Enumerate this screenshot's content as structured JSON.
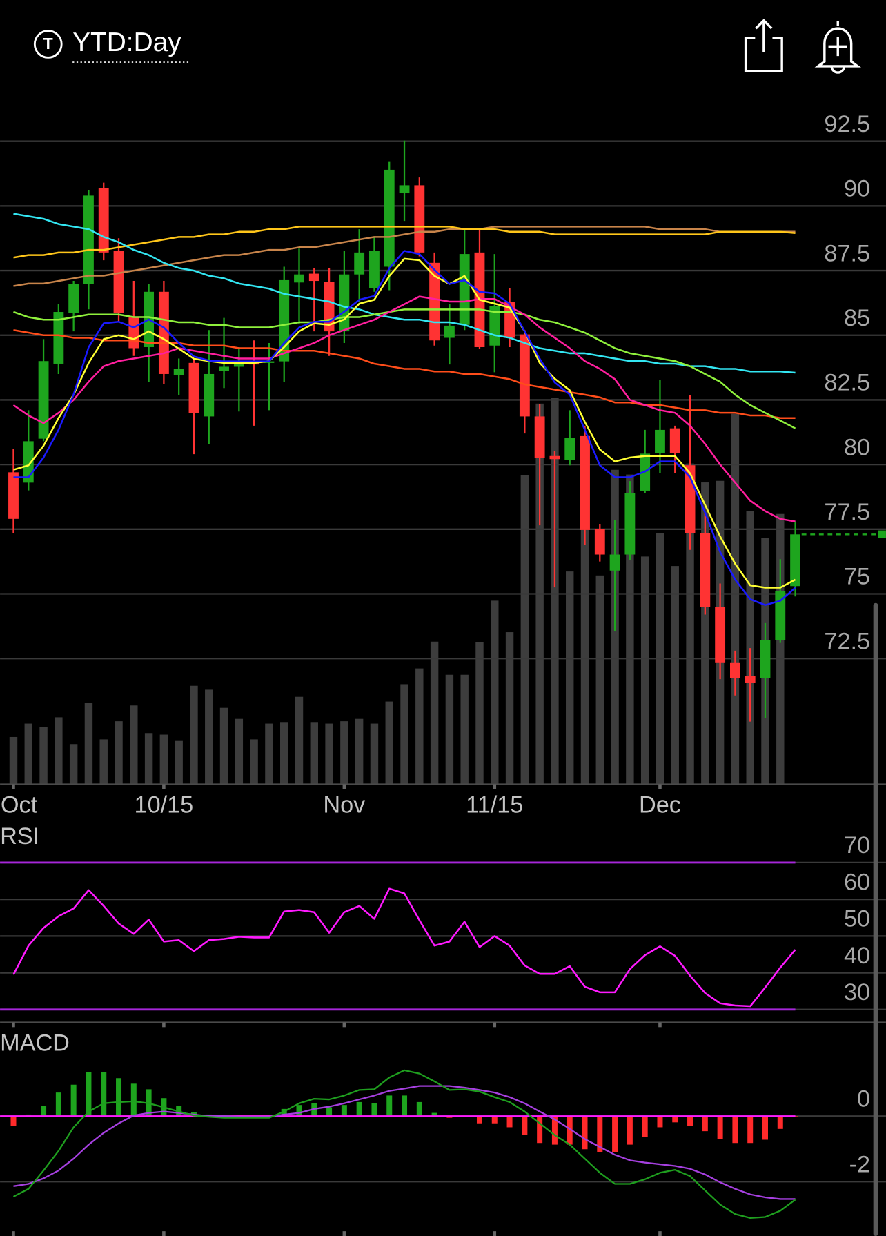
{
  "header": {
    "icon": "T",
    "title": "YTD:Day"
  },
  "chart_data": [
    {
      "type": "candlestick",
      "categories": [
        "Oct",
        null,
        null,
        null,
        null,
        null,
        null,
        null,
        null,
        null,
        "10/15",
        null,
        null,
        null,
        null,
        null,
        null,
        null,
        null,
        null,
        null,
        null,
        "Nov",
        null,
        null,
        null,
        null,
        null,
        null,
        null,
        null,
        null,
        "11/15",
        null,
        null,
        null,
        null,
        null,
        null,
        null,
        null,
        null,
        null,
        "Dec",
        null,
        null,
        null,
        null,
        null,
        null,
        null,
        null,
        null
      ],
      "open": [
        79.7,
        79.3,
        81.0,
        83.9,
        85.85,
        86.98,
        90.7,
        88.26,
        85.7,
        84.54,
        86.68,
        83.47,
        83.93,
        81.86,
        83.63,
        83.78,
        83.99,
        83.93,
        83.99,
        87.04,
        87.38,
        87.07,
        85.15,
        87.35,
        86.83,
        87.65,
        90.49,
        90.8,
        87.8,
        84.9,
        85.4,
        88.2,
        84.6,
        86.28,
        85.03,
        81.86,
        80.33,
        80.18,
        81.1,
        77.5,
        75.9,
        76.52,
        78.99,
        80.45,
        81.4,
        79.97,
        77.35,
        74.5,
        72.35,
        71.83,
        71.74,
        73.2,
        75.3
      ],
      "high": [
        80.6,
        82.1,
        84.85,
        86.2,
        87.1,
        90.6,
        90.9,
        88.75,
        87.1,
        86.98,
        87.1,
        84.1,
        84.1,
        85.2,
        85.67,
        84.54,
        84.8,
        84.7,
        87.65,
        88.35,
        87.59,
        87.59,
        88.26,
        89.1,
        88.8,
        91.7,
        92.53,
        91.1,
        88.2,
        86.2,
        89.1,
        89.1,
        88.14,
        86.83,
        85.2,
        82.35,
        80.52,
        82.1,
        81.5,
        77.7,
        77.84,
        79.36,
        81.34,
        83.26,
        81.5,
        82.7,
        78.1,
        75.4,
        72.8,
        72.9,
        73.87,
        76.34,
        77.8
      ],
      "low": [
        77.35,
        79.0,
        80.9,
        83.5,
        85.15,
        86.0,
        87.9,
        85.5,
        84.2,
        83.2,
        83.1,
        82.7,
        80.4,
        80.8,
        82.96,
        82.05,
        81.5,
        82.1,
        83.2,
        85.45,
        85.15,
        84.2,
        84.7,
        86.3,
        86.68,
        86.74,
        89.42,
        88.05,
        84.6,
        83.87,
        85.2,
        84.48,
        83.57,
        84.54,
        81.2,
        77.65,
        75.25,
        79.97,
        76.9,
        76.25,
        73.57,
        76.3,
        78.9,
        79.66,
        79.66,
        76.7,
        74.2,
        71.7,
        71.07,
        70.06,
        70.21,
        73.1,
        74.9
      ],
      "close": [
        77.9,
        80.9,
        84.0,
        85.9,
        86.98,
        90.4,
        88.2,
        85.85,
        84.5,
        86.68,
        83.5,
        83.69,
        81.98,
        83.5,
        83.78,
        83.99,
        83.87,
        83.99,
        87.13,
        87.35,
        87.1,
        85.15,
        87.35,
        88.2,
        88.26,
        91.4,
        90.8,
        88.2,
        84.8,
        85.37,
        88.14,
        84.54,
        86.13,
        84.9,
        81.86,
        80.27,
        80.21,
        81.04,
        77.47,
        76.52,
        76.52,
        78.9,
        80.42,
        81.34,
        80.45,
        77.35,
        74.5,
        72.35,
        71.74,
        71.55,
        73.2,
        75.1,
        77.3
      ],
      "up_color": "#1ea51e",
      "down_color": "#ff3333",
      "volume": {
        "color": "#3d3d3d",
        "values": [
          60,
          77,
          73,
          85,
          51,
          103,
          57,
          80,
          100,
          65,
          63,
          55,
          125,
          120,
          97,
          83,
          57,
          77,
          79,
          111,
          79,
          77,
          80,
          83,
          77,
          105,
          127,
          147,
          181,
          139,
          139,
          180,
          233,
          193,
          392,
          483,
          490,
          270,
          345,
          265,
          399,
          393,
          289,
          319,
          277,
          407,
          383,
          385,
          470,
          347,
          313,
          343,
          null
        ]
      },
      "series": [
        {
          "color": "#c8844a",
          "values": [
            86.9,
            87.0,
            87.0,
            87.1,
            87.2,
            87.3,
            87.3,
            87.4,
            87.5,
            87.6,
            87.7,
            87.8,
            87.9,
            88.0,
            88.1,
            88.1,
            88.2,
            88.3,
            88.3,
            88.4,
            88.4,
            88.5,
            88.6,
            88.7,
            88.8,
            88.8,
            88.9,
            89.0,
            89.0,
            89.1,
            89.1,
            89.1,
            89.2,
            89.2,
            89.2,
            89.2,
            89.2,
            89.2,
            89.2,
            89.2,
            89.2,
            89.2,
            89.2,
            89.1,
            89.1,
            89.1,
            89.1,
            89.0,
            89.0,
            89.0,
            89.0,
            89.0,
            89.0
          ]
        },
        {
          "color": "#ffc61a",
          "values": [
            88.0,
            88.1,
            88.1,
            88.2,
            88.2,
            88.3,
            88.3,
            88.4,
            88.5,
            88.6,
            88.7,
            88.8,
            88.8,
            88.9,
            88.9,
            89.0,
            89.0,
            89.1,
            89.1,
            89.2,
            89.2,
            89.2,
            89.2,
            89.2,
            89.2,
            89.2,
            89.2,
            89.2,
            89.2,
            89.2,
            89.1,
            89.1,
            89.1,
            89.0,
            89.0,
            89.0,
            88.9,
            88.9,
            88.9,
            88.9,
            88.9,
            88.9,
            88.9,
            88.9,
            88.9,
            88.9,
            88.9,
            89.0,
            89.0,
            89.0,
            89.0,
            89.0,
            88.95
          ]
        },
        {
          "color": "#33e6f2",
          "values": [
            89.7,
            89.6,
            89.5,
            89.3,
            89.2,
            89.1,
            88.8,
            88.6,
            88.3,
            88.1,
            87.8,
            87.6,
            87.5,
            87.3,
            87.2,
            87.0,
            86.9,
            86.8,
            86.6,
            86.5,
            86.4,
            86.3,
            86.1,
            86.0,
            85.8,
            85.7,
            85.6,
            85.6,
            85.5,
            85.5,
            85.4,
            85.2,
            85.0,
            84.9,
            84.7,
            84.5,
            84.4,
            84.3,
            84.3,
            84.2,
            84.1,
            84.0,
            84.0,
            83.9,
            83.9,
            83.8,
            83.8,
            83.7,
            83.7,
            83.6,
            83.6,
            83.6,
            83.55
          ]
        },
        {
          "color": "#ff4d1a",
          "values": [
            85.2,
            85.1,
            85.0,
            85.0,
            84.9,
            84.9,
            84.8,
            84.8,
            84.8,
            84.7,
            84.7,
            84.7,
            84.6,
            84.6,
            84.6,
            84.5,
            84.5,
            84.5,
            84.4,
            84.4,
            84.4,
            84.3,
            84.2,
            84.1,
            83.9,
            83.8,
            83.7,
            83.7,
            83.6,
            83.6,
            83.5,
            83.5,
            83.4,
            83.3,
            83.1,
            83.0,
            82.9,
            82.8,
            82.7,
            82.6,
            82.4,
            82.4,
            82.3,
            82.3,
            82.2,
            82.1,
            82.1,
            82.0,
            82.0,
            81.9,
            81.9,
            81.8,
            81.8
          ]
        },
        {
          "color": "#8ff03c",
          "values": [
            85.9,
            85.7,
            85.6,
            85.6,
            85.7,
            85.8,
            85.8,
            85.8,
            85.7,
            85.7,
            85.6,
            85.5,
            85.5,
            85.4,
            85.4,
            85.3,
            85.3,
            85.3,
            85.4,
            85.5,
            85.5,
            85.6,
            85.7,
            85.7,
            85.8,
            85.9,
            86.0,
            86.0,
            86.0,
            86.0,
            86.0,
            86.0,
            85.9,
            85.9,
            85.8,
            85.6,
            85.5,
            85.3,
            85.1,
            84.8,
            84.5,
            84.3,
            84.2,
            84.1,
            84.0,
            83.8,
            83.5,
            83.2,
            82.7,
            82.3,
            82.0,
            81.7,
            81.4
          ]
        },
        {
          "color": "#ff1f9e",
          "values": [
            82.3,
            81.9,
            81.6,
            82.0,
            82.5,
            83.2,
            83.8,
            84.0,
            84.1,
            84.2,
            84.3,
            84.5,
            84.4,
            84.3,
            84.2,
            84.1,
            84.1,
            84.1,
            84.3,
            84.5,
            84.7,
            85.0,
            85.2,
            85.4,
            85.6,
            85.9,
            86.2,
            86.5,
            86.4,
            86.3,
            86.3,
            86.4,
            86.4,
            86.1,
            85.8,
            85.3,
            84.9,
            84.5,
            84.0,
            83.7,
            83.3,
            82.5,
            82.3,
            82.1,
            82.0,
            81.5,
            80.8,
            80.0,
            79.3,
            78.6,
            78.2,
            77.9,
            77.8
          ]
        },
        {
          "color": "#ffff33",
          "values": [
            79.8,
            79.97,
            80.73,
            81.8,
            82.7,
            83.93,
            84.85,
            85.0,
            84.85,
            85.15,
            84.85,
            84.48,
            84.09,
            84.0,
            83.93,
            83.93,
            83.93,
            84.0,
            84.54,
            85.15,
            85.46,
            85.4,
            85.61,
            86.22,
            86.37,
            87.29,
            87.96,
            87.9,
            87.29,
            86.98,
            87.29,
            86.37,
            86.22,
            86.07,
            85.15,
            83.93,
            83.32,
            82.87,
            81.65,
            80.58,
            80.12,
            80.27,
            80.33,
            80.33,
            80.33,
            79.66,
            78.44,
            77.22,
            76.16,
            75.33,
            75.24,
            75.24,
            75.55
          ]
        },
        {
          "color": "#1a1aff",
          "values": [
            79.51,
            79.51,
            80.27,
            81.34,
            82.71,
            84.54,
            85.46,
            85.52,
            85.3,
            85.61,
            85.3,
            84.7,
            84.18,
            84.02,
            83.99,
            83.99,
            83.99,
            83.99,
            84.7,
            85.3,
            85.52,
            85.52,
            85.91,
            86.37,
            86.52,
            87.59,
            88.26,
            88.14,
            87.53,
            86.98,
            87.13,
            86.68,
            86.62,
            86.22,
            85.15,
            84.09,
            83.17,
            82.71,
            81.34,
            79.97,
            79.51,
            79.51,
            79.73,
            80.12,
            80.12,
            79.51,
            78.14,
            76.62,
            75.55,
            74.79,
            74.57,
            74.73,
            75.24
          ]
        }
      ],
      "last_price_color": "#1ea51e",
      "ylim": [
        68,
        94
      ],
      "yticks": [
        72.5,
        75,
        77.5,
        80,
        82.5,
        85,
        87.5,
        90,
        92.5
      ],
      "grid": true
    },
    {
      "type": "line",
      "title": "RSI",
      "series": [
        {
          "color": "#ff1aff",
          "values": [
            39.5,
            47.4,
            52.2,
            55.4,
            57.5,
            62.5,
            58.2,
            53.4,
            50.6,
            54.5,
            48.5,
            48.9,
            45.9,
            48.9,
            49.2,
            49.8,
            49.6,
            49.6,
            56.7,
            57.1,
            56.5,
            50.9,
            56.5,
            58.2,
            54.7,
            62.9,
            61.6,
            54.3,
            47.4,
            48.5,
            53.9,
            47.0,
            50.0,
            47.4,
            42.0,
            39.7,
            39.7,
            41.8,
            36.2,
            34.7,
            34.7,
            41.0,
            44.8,
            47.2,
            44.6,
            39.2,
            34.5,
            31.7,
            31.1,
            30.9,
            36.0,
            41.4,
            46.3
          ]
        }
      ],
      "levels": {
        "color": "#a626d9",
        "values": [
          70,
          30
        ]
      },
      "ylim": [
        26.5,
        79.5
      ],
      "yticks": [
        30,
        40,
        50,
        60,
        70
      ],
      "grid": true
    },
    {
      "type": "macd",
      "title": "MACD",
      "macd": {
        "color": "#1f9e1f",
        "values": [
          -2.46,
          -2.22,
          -1.66,
          -1.06,
          -0.34,
          0.14,
          0.39,
          0.43,
          0.45,
          0.39,
          0.27,
          0.14,
          0.02,
          -0.02,
          -0.05,
          -0.05,
          -0.05,
          -0.05,
          0.14,
          0.39,
          0.53,
          0.51,
          0.63,
          0.8,
          0.82,
          1.18,
          1.4,
          1.3,
          1.06,
          0.8,
          0.82,
          0.75,
          0.58,
          0.43,
          0.14,
          -0.22,
          -0.58,
          -0.87,
          -1.3,
          -1.73,
          -2.07,
          -2.07,
          -1.93,
          -1.73,
          -1.64,
          -1.83,
          -2.27,
          -2.7,
          -2.99,
          -3.11,
          -3.08,
          -2.89,
          -2.55
        ]
      },
      "signal": {
        "color": "#a640e0",
        "values": [
          -2.14,
          -2.07,
          -1.9,
          -1.66,
          -1.3,
          -0.87,
          -0.51,
          -0.22,
          0.02,
          0.1,
          0.14,
          0.1,
          0.05,
          0,
          0,
          -0.02,
          -0.02,
          -0.02,
          0.05,
          0.1,
          0.22,
          0.29,
          0.39,
          0.51,
          0.63,
          0.77,
          0.84,
          0.92,
          0.92,
          0.92,
          0.87,
          0.8,
          0.72,
          0.58,
          0.39,
          0.14,
          -0.1,
          -0.39,
          -0.7,
          -0.94,
          -1.18,
          -1.35,
          -1.42,
          -1.47,
          -1.52,
          -1.61,
          -1.78,
          -2.02,
          -2.22,
          -2.39,
          -2.48,
          -2.53,
          -2.53
        ]
      },
      "histogram": {
        "up_color": "#1ea51e",
        "down_color": "#ff2a2a",
        "values": [
          -0.29,
          0.05,
          0.31,
          0.72,
          0.96,
          1.35,
          1.35,
          1.16,
          0.99,
          0.82,
          0.55,
          0.31,
          0.12,
          0.05,
          0.02,
          0.02,
          0.01,
          0.02,
          0.22,
          0.34,
          0.39,
          0.27,
          0.34,
          0.43,
          0.39,
          0.63,
          0.63,
          0.43,
          0.1,
          -0.05,
          -0.02,
          -0.22,
          -0.22,
          -0.34,
          -0.58,
          -0.82,
          -0.87,
          -0.87,
          -1.01,
          -1.11,
          -1.11,
          -0.87,
          -0.63,
          -0.34,
          -0.19,
          -0.29,
          -0.46,
          -0.7,
          -0.82,
          -0.82,
          -0.72,
          -0.39,
          -0.02
        ]
      },
      "zero_line_color": "#ff1aff",
      "ylim": [
        -3.66,
        2.67
      ],
      "yticks": [
        -2,
        0
      ],
      "grid": true
    }
  ]
}
